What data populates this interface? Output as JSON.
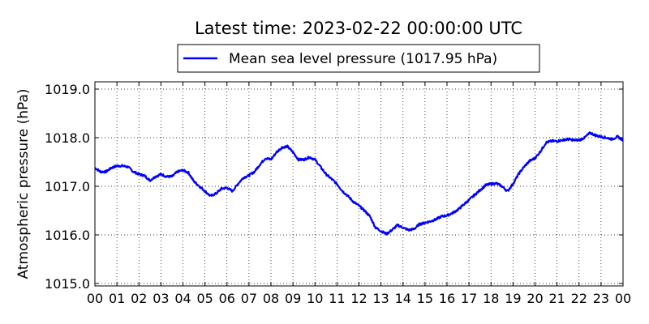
{
  "chart_data": {
    "type": "line",
    "title": "Latest time: 2023-02-22 00:00:00 UTC",
    "ylabel": "Atmospheric pressure (hPa)",
    "xlabel": "",
    "ylim": [
      1014.95,
      1019.15
    ],
    "xlim": [
      0,
      24
    ],
    "yticks": [
      1015.0,
      1016.0,
      1017.0,
      1018.0,
      1019.0
    ],
    "ytick_labels": [
      "1015.0",
      "1016.0",
      "1017.0",
      "1018.0",
      "1019.0"
    ],
    "xticks": [
      0,
      1,
      2,
      3,
      4,
      5,
      6,
      7,
      8,
      9,
      10,
      11,
      12,
      13,
      14,
      15,
      16,
      17,
      18,
      19,
      20,
      21,
      22,
      23,
      24
    ],
    "xtick_labels": [
      "00",
      "01",
      "02",
      "03",
      "04",
      "05",
      "06",
      "07",
      "08",
      "09",
      "10",
      "11",
      "12",
      "13",
      "14",
      "15",
      "16",
      "17",
      "18",
      "19",
      "20",
      "21",
      "22",
      "23",
      "00"
    ],
    "grid": true,
    "legend_position": "top-center",
    "colors": {
      "series": "#0000ff"
    },
    "series": [
      {
        "name": "Mean sea level pressure (1017.95 hPa)",
        "x": [
          0,
          0.25,
          0.5,
          0.75,
          1.0,
          1.25,
          1.5,
          1.75,
          2.0,
          2.25,
          2.5,
          2.75,
          3.0,
          3.25,
          3.5,
          3.75,
          4.0,
          4.25,
          4.5,
          4.75,
          5.0,
          5.25,
          5.5,
          5.75,
          6.0,
          6.25,
          6.5,
          6.75,
          7.0,
          7.25,
          7.5,
          7.75,
          8.0,
          8.25,
          8.5,
          8.75,
          9.0,
          9.25,
          9.5,
          9.75,
          10.0,
          10.25,
          10.5,
          10.75,
          11.0,
          11.25,
          11.5,
          11.75,
          12.0,
          12.25,
          12.5,
          12.75,
          13.0,
          13.25,
          13.5,
          13.75,
          14.0,
          14.25,
          14.5,
          14.75,
          15.0,
          15.25,
          15.5,
          15.75,
          16.0,
          16.25,
          16.5,
          16.75,
          17.0,
          17.25,
          17.5,
          17.75,
          18.0,
          18.25,
          18.5,
          18.75,
          19.0,
          19.25,
          19.5,
          19.75,
          20.0,
          20.25,
          20.5,
          20.75,
          21.0,
          21.25,
          21.5,
          21.75,
          22.0,
          22.25,
          22.5,
          22.75,
          23.0,
          23.25,
          23.5,
          23.75,
          24.0
        ],
        "values": [
          1017.38,
          1017.3,
          1017.3,
          1017.38,
          1017.42,
          1017.42,
          1017.4,
          1017.3,
          1017.25,
          1017.22,
          1017.12,
          1017.2,
          1017.25,
          1017.2,
          1017.2,
          1017.3,
          1017.33,
          1017.28,
          1017.1,
          1017.0,
          1016.9,
          1016.8,
          1016.85,
          1016.95,
          1016.97,
          1016.9,
          1017.05,
          1017.18,
          1017.22,
          1017.3,
          1017.45,
          1017.58,
          1017.55,
          1017.7,
          1017.8,
          1017.82,
          1017.7,
          1017.55,
          1017.55,
          1017.6,
          1017.55,
          1017.4,
          1017.25,
          1017.15,
          1017.05,
          1016.9,
          1016.8,
          1016.68,
          1016.6,
          1016.5,
          1016.38,
          1016.15,
          1016.08,
          1016.02,
          1016.1,
          1016.2,
          1016.15,
          1016.1,
          1016.12,
          1016.22,
          1016.25,
          1016.28,
          1016.32,
          1016.38,
          1016.4,
          1016.45,
          1016.52,
          1016.62,
          1016.72,
          1016.82,
          1016.92,
          1017.02,
          1017.05,
          1017.06,
          1017.0,
          1016.9,
          1017.05,
          1017.25,
          1017.4,
          1017.52,
          1017.58,
          1017.72,
          1017.9,
          1017.93,
          1017.93,
          1017.95,
          1017.97,
          1017.95,
          1017.95,
          1018.0,
          1018.1,
          1018.05,
          1018.02,
          1018.0,
          1017.97,
          1018.02,
          1017.95
        ]
      }
    ]
  }
}
